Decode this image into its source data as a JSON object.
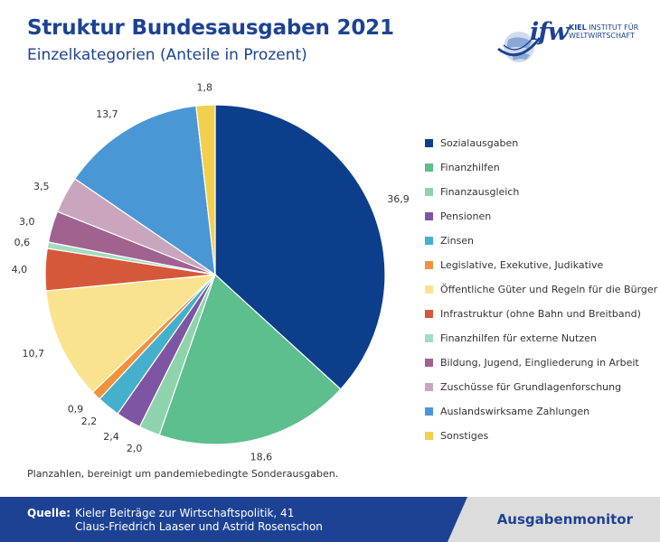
{
  "header": {
    "title": "Struktur Bundesausgaben 2021",
    "subtitle": "Einzelkategorien (Anteile in Prozent)"
  },
  "logo": {
    "mark": "ifw",
    "line1_bold": "KIEL",
    "line1_rest": "INSTITUT FÜR",
    "line2": "WELTWIRTSCHAFT",
    "icon": "globe-icon"
  },
  "chart_data": {
    "type": "pie",
    "title": "Struktur Bundesausgaben 2021",
    "subtitle": "Einzelkategorien (Anteile in Prozent)",
    "start_angle_deg": 0,
    "direction": "clockwise",
    "legend_position": "right",
    "slices": [
      {
        "label": "Sozialausgaben",
        "value": 36.9,
        "display": "36,9",
        "color": "#0c3e8c"
      },
      {
        "label": "Finanzhilfen",
        "value": 18.6,
        "display": "18,6",
        "color": "#5cbf8d"
      },
      {
        "label": "Finanzausgleich",
        "value": 2.0,
        "display": "2,0",
        "color": "#8fd3ae"
      },
      {
        "label": "Pensionen",
        "value": 2.4,
        "display": "2,4",
        "color": "#7e55a3"
      },
      {
        "label": "Zinsen",
        "value": 2.2,
        "display": "2,2",
        "color": "#45b0cc"
      },
      {
        "label": "Legislative, Exekutive, Judikative",
        "value": 0.9,
        "display": "0,9",
        "color": "#f0923e"
      },
      {
        "label": "Öffentliche Güter und Regeln für die Bürger",
        "value": 10.7,
        "display": "10,7",
        "color": "#f9e38f"
      },
      {
        "label": "Infrastruktur (ohne Bahn und Breitband)",
        "value": 4.0,
        "display": "4,0",
        "color": "#d6583a"
      },
      {
        "label": "Finanzhilfen für externe Nutzen",
        "value": 0.6,
        "display": "0,6",
        "color": "#a3dcc0"
      },
      {
        "label": "Bildung, Jugend, Eingliederung in Arbeit",
        "value": 3.0,
        "display": "3,0",
        "color": "#a0628f"
      },
      {
        "label": "Zuschüsse für Grundlagenforschung",
        "value": 3.5,
        "display": "3,5",
        "color": "#c9a6bd"
      },
      {
        "label": "Auslandswirksame Zahlungen",
        "value": 13.7,
        "display": "13,7",
        "color": "#4a97d6"
      },
      {
        "label": "Sonstiges",
        "value": 1.8,
        "display": "1,8",
        "color": "#f2d04d"
      }
    ]
  },
  "note": "Planzahlen, bereinigt um pandemiebedingte Sonderausgaben.",
  "footer": {
    "source_label": "Quelle:",
    "source_line1": "Kieler Beiträge zur Wirtschaftspolitik, 41",
    "source_line2": "Claus-Friedrich Laaser und Astrid Rosenschon",
    "brand": "Ausgabenmonitor"
  }
}
